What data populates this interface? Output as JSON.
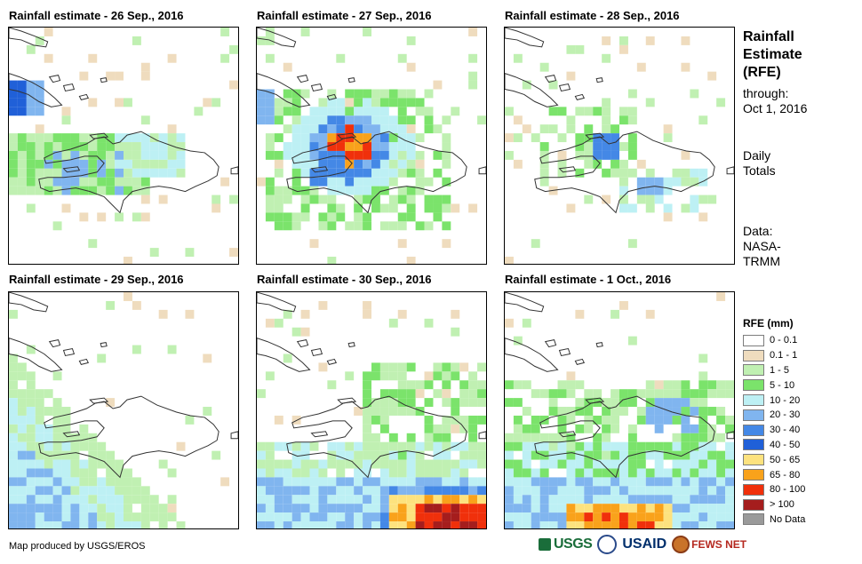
{
  "panels": [
    {
      "title": "Rainfall estimate - 26 Sep., 2016"
    },
    {
      "title": "Rainfall estimate - 27 Sep., 2016"
    },
    {
      "title": "Rainfall estimate - 28 Sep., 2016"
    },
    {
      "title": "Rainfall estimate - 29 Sep., 2016"
    },
    {
      "title": "Rainfall estimate - 30 Sep., 2016"
    },
    {
      "title": "Rainfall estimate - 1 Oct., 2016"
    }
  ],
  "sidebar": {
    "title_line1": "Rainfall",
    "title_line2": "Estimate",
    "title_line3": "(RFE)",
    "through_label": "through:",
    "through_date": "Oct 1, 2016",
    "daily_line1": "Daily",
    "daily_line2": "Totals",
    "data_line1": "Data:",
    "data_line2": "NASA-",
    "data_line3": "TRMM"
  },
  "legend": {
    "title": "RFE (mm)",
    "items": [
      {
        "label": "0 - 0.1",
        "color": "#ffffff"
      },
      {
        "label": "0.1 - 1",
        "color": "#efdcbe"
      },
      {
        "label": "1 - 5",
        "color": "#c0f0b2"
      },
      {
        "label": "5 - 10",
        "color": "#7be36b"
      },
      {
        "label": "10 - 20",
        "color": "#bdf0f4"
      },
      {
        "label": "20 - 30",
        "color": "#80b5ef"
      },
      {
        "label": "30 - 40",
        "color": "#4488e6"
      },
      {
        "label": "40 - 50",
        "color": "#2060d8"
      },
      {
        "label": "50 - 65",
        "color": "#fde27e"
      },
      {
        "label": "65 - 80",
        "color": "#f9a21b"
      },
      {
        "label": "80 - 100",
        "color": "#f0300b"
      },
      {
        "label": "> 100",
        "color": "#a51d1d"
      },
      {
        "label": "No Data",
        "color": "#9a9a9a"
      }
    ]
  },
  "footer": {
    "credit": "Map produced by USGS/EROS"
  },
  "logos": {
    "usgs": "USGS",
    "usaid": "USAID",
    "fews": "FEWS NET"
  }
}
